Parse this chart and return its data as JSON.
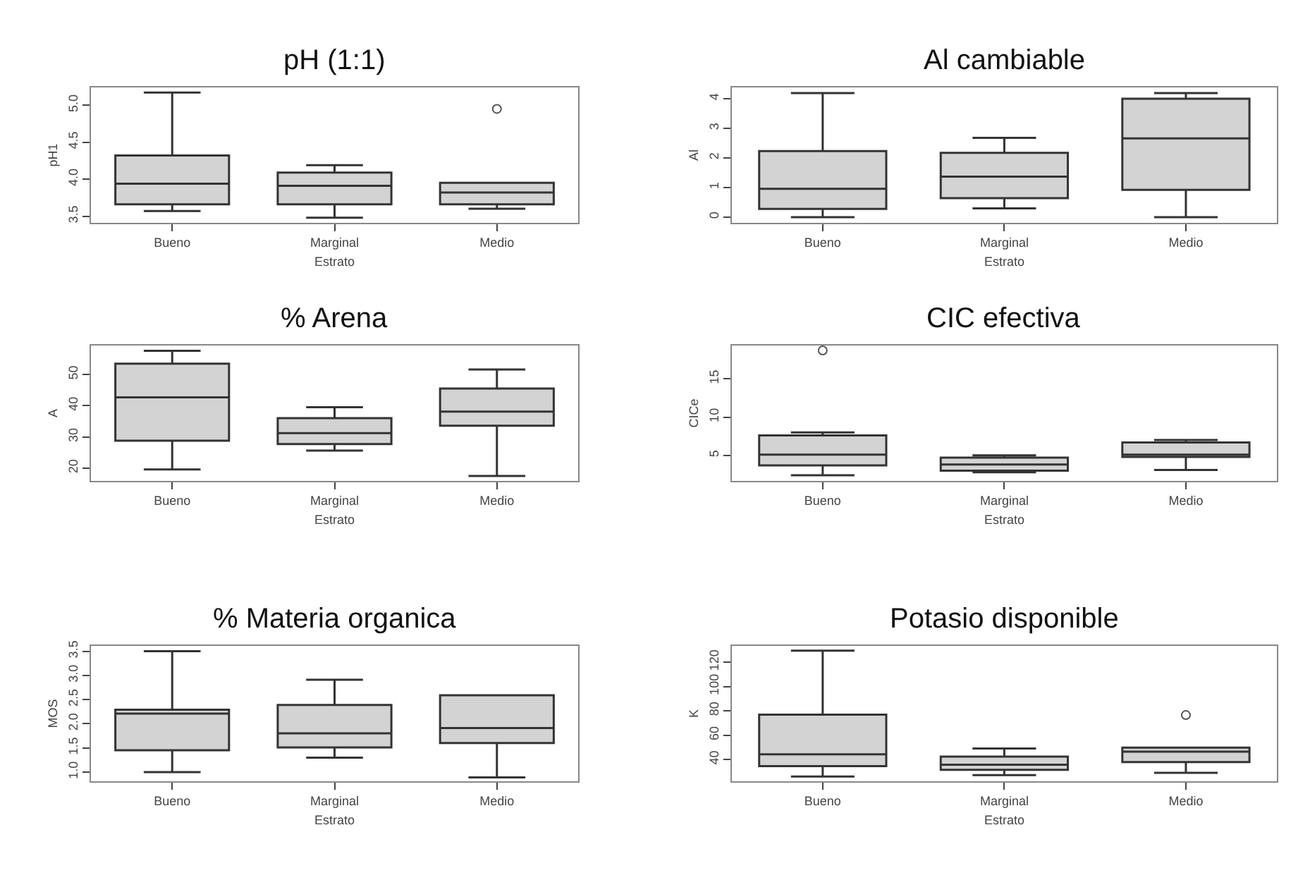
{
  "chart_data": [
    {
      "type": "box",
      "title": "pH (1:1)",
      "xlabel": "Estrato",
      "ylabel": "pH1",
      "categories": [
        "Bueno",
        "Marginal",
        "Medio"
      ],
      "ylim": [
        3.41,
        5.24
      ],
      "yticks": [
        3.5,
        {
          "value": 4,
          "label": "4.0"
        },
        4.5,
        {
          "value": 5,
          "label": "5.0"
        }
      ],
      "series": [
        {
          "color": "#d3d3d3",
          "boxes": [
            {
              "low": 3.57,
              "q1": 3.66,
              "median": 3.94,
              "q3": 4.32,
              "high": 5.17
            },
            {
              "low": 3.48,
              "q1": 3.66,
              "median": 3.91,
              "q3": 4.09,
              "high": 4.19
            },
            {
              "low": 3.6,
              "q1": 3.66,
              "median": 3.82,
              "q3": 3.95,
              "high": 3.95,
              "outliers": [
                4.95
              ]
            }
          ]
        }
      ]
    },
    {
      "type": "box",
      "title": "Al cambiable",
      "xlabel": "Estrato",
      "ylabel": "Al",
      "categories": [
        "Bueno",
        "Marginal",
        "Medio"
      ],
      "ylim": [
        -0.19,
        4.38
      ],
      "yticks": [
        0,
        1,
        2,
        3,
        4
      ],
      "series": [
        {
          "color": "#d3d3d3",
          "boxes": [
            {
              "low": 0,
              "q1": 0.28,
              "median": 0.96,
              "q3": 2.23,
              "high": 4.19
            },
            {
              "low": 0.3,
              "q1": 0.64,
              "median": 1.37,
              "q3": 2.17,
              "high": 2.68
            },
            {
              "low": 0,
              "q1": 0.92,
              "median": 2.66,
              "q3": 4.0,
              "high": 4.19
            }
          ]
        }
      ]
    },
    {
      "type": "box",
      "title": "% Arena",
      "xlabel": "Estrato",
      "ylabel": "A",
      "categories": [
        "Bueno",
        "Marginal",
        "Medio"
      ],
      "ylim": [
        15.9,
        59.3
      ],
      "yticks": [
        20,
        30,
        40,
        50
      ],
      "series": [
        {
          "color": "#d3d3d3",
          "boxes": [
            {
              "low": 19.6,
              "q1": 28.8,
              "median": 42.7,
              "q3": 53.5,
              "high": 57.6
            },
            {
              "low": 25.6,
              "q1": 27.7,
              "median": 31.2,
              "q3": 36.0,
              "high": 39.5
            },
            {
              "low": 17.5,
              "q1": 33.6,
              "median": 38.1,
              "q3": 45.5,
              "high": 51.6
            }
          ]
        }
      ]
    },
    {
      "type": "box",
      "title": "CIC efectiva",
      "xlabel": "Estrato",
      "ylabel": "CICe",
      "categories": [
        "Bueno",
        "Marginal",
        "Medio"
      ],
      "ylim": [
        1.67,
        19.35
      ],
      "yticks": [
        5,
        10,
        15
      ],
      "series": [
        {
          "color": "#d3d3d3",
          "boxes": [
            {
              "low": 2.4,
              "q1": 3.7,
              "median": 5.1,
              "q3": 7.6,
              "high": 8.0,
              "outliers": [
                18.7
              ]
            },
            {
              "low": 2.8,
              "q1": 3.0,
              "median": 3.8,
              "q3": 4.7,
              "high": 5.0
            },
            {
              "low": 3.1,
              "q1": 4.8,
              "median": 5.1,
              "q3": 6.7,
              "high": 7.0
            }
          ]
        }
      ]
    },
    {
      "type": "box",
      "title": "% Materia organica",
      "xlabel": "Estrato",
      "ylabel": "MOS",
      "categories": [
        "Bueno",
        "Marginal",
        "Medio"
      ],
      "ylim": [
        0.81,
        3.61
      ],
      "yticks": [
        {
          "value": 1,
          "label": "1.0"
        },
        1.5,
        {
          "value": 2,
          "label": "2.0"
        },
        2.5,
        {
          "value": 3,
          "label": "3.0"
        },
        3.5
      ],
      "series": [
        {
          "color": "#d3d3d3",
          "boxes": [
            {
              "low": 1.0,
              "q1": 1.45,
              "median": 2.21,
              "q3": 2.29,
              "high": 3.5
            },
            {
              "low": 1.3,
              "q1": 1.51,
              "median": 1.8,
              "q3": 2.39,
              "high": 2.91
            },
            {
              "low": 0.89,
              "q1": 1.6,
              "median": 1.91,
              "q3": 2.59,
              "high": 2.59
            }
          ]
        }
      ]
    },
    {
      "type": "box",
      "title": "Potasio disponible",
      "xlabel": "Estrato",
      "ylabel": "K",
      "categories": [
        "Bueno",
        "Marginal",
        "Medio"
      ],
      "ylim": [
        22.1,
        133.3
      ],
      "yticks": [
        40,
        60,
        80,
        100,
        120
      ],
      "series": [
        {
          "color": "#d3d3d3",
          "boxes": [
            {
              "low": 26,
              "q1": 34.5,
              "median": 44.3,
              "q3": 76.8,
              "high": 129.4
            },
            {
              "low": 27.2,
              "q1": 31.5,
              "median": 35.7,
              "q3": 42.4,
              "high": 49.1
            },
            {
              "low": 29.1,
              "q1": 37.9,
              "median": 46.4,
              "q3": 49.7,
              "high": 49.7,
              "outliers": [
                76.5
              ]
            }
          ]
        }
      ]
    }
  ]
}
